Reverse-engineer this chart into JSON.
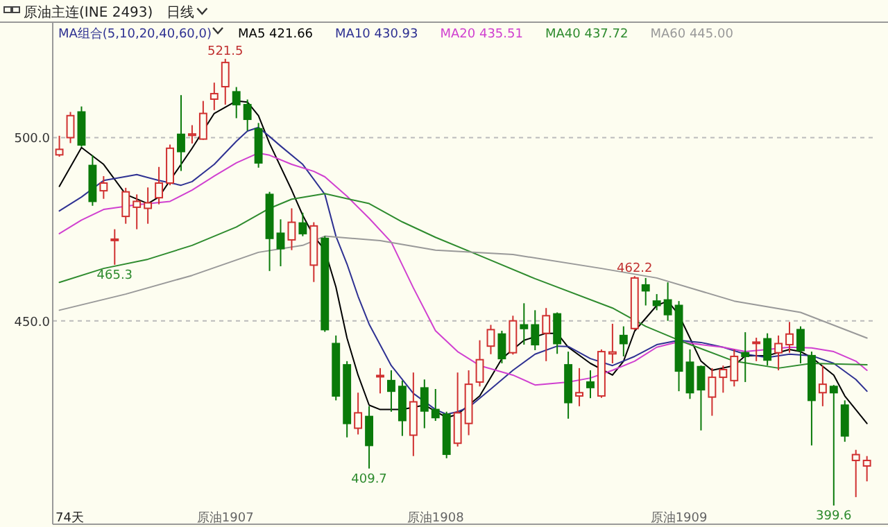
{
  "chart_data": {
    "type": "candlestick",
    "title": "原油主连(INE 2493)",
    "subtitle": "日线",
    "legend_title": "MA组合(5,10,20,40,60,0)",
    "legend": "top left",
    "grid": "y",
    "categories": [
      null,
      null,
      null,
      null,
      null,
      null,
      null,
      null,
      null,
      null,
      null,
      null,
      null,
      null,
      null,
      "原油1907",
      null,
      null,
      null,
      null,
      null,
      null,
      null,
      null,
      null,
      null,
      null,
      null,
      null,
      null,
      null,
      null,
      null,
      null,
      "原油1908",
      null,
      null,
      null,
      null,
      null,
      null,
      null,
      null,
      null,
      null,
      null,
      null,
      null,
      null,
      null,
      null,
      null,
      null,
      null,
      null,
      null,
      "原油1909",
      null,
      null,
      null,
      null,
      null,
      null,
      null,
      null,
      null,
      null,
      null,
      null,
      null,
      null,
      null,
      null,
      null
    ],
    "ylim": [
      394.5,
      531.5
    ],
    "yticks": [
      {
        "value": 500,
        "label": "500.0"
      },
      {
        "value": 450,
        "label": "450.0"
      }
    ],
    "ohlc": [
      [
        495.3,
        500.5,
        494.8,
        496.8
      ],
      [
        500,
        507,
        498.5,
        506
      ],
      [
        507,
        508.5,
        497.5,
        498
      ],
      [
        492.4,
        495.2,
        481.4,
        482.6
      ],
      [
        485.5,
        489.5,
        483.3,
        487.6
      ],
      [
        472,
        475,
        465.3,
        472.3
      ],
      [
        478.5,
        486.3,
        476.5,
        485.2
      ],
      [
        481,
        484.5,
        475,
        482.6
      ],
      [
        480.7,
        486.4,
        476.5,
        482.2
      ],
      [
        483.6,
        492,
        481.8,
        487.6
      ],
      [
        487.6,
        498.1,
        487,
        497.1
      ],
      [
        500.9,
        511.6,
        490.9,
        496.2
      ],
      [
        500.6,
        503.4,
        498.4,
        501
      ],
      [
        499.6,
        510,
        499.4,
        506.6
      ],
      [
        510.5,
        515,
        507.5,
        512
      ],
      [
        513.9,
        521.5,
        509,
        520.5
      ],
      [
        512.5,
        513.8,
        505.3,
        509
      ],
      [
        509,
        510.4,
        501.9,
        505
      ],
      [
        502.4,
        504,
        491.8,
        493.1
      ],
      [
        484.5,
        485.2,
        463.6,
        472.5
      ],
      [
        473.9,
        477.7,
        464.9,
        469.7
      ],
      [
        472.1,
        480.7,
        469.3,
        476.9
      ],
      [
        476.7,
        479.5,
        473.1,
        473.8
      ],
      [
        465.2,
        476.9,
        460.6,
        475.9
      ],
      [
        472.5,
        473.1,
        447,
        447.6
      ],
      [
        443.8,
        446,
        428.3,
        429.5
      ],
      [
        438,
        439,
        418.2,
        422
      ],
      [
        420.7,
        430.4,
        419,
        424.9
      ],
      [
        423.9,
        426.7,
        409.7,
        416
      ],
      [
        434.8,
        437.1,
        430.2,
        435.1
      ],
      [
        433.7,
        436.5,
        425.2,
        430.8
      ],
      [
        432.1,
        433.7,
        418.6,
        422.8
      ],
      [
        418.8,
        435.9,
        413.1,
        427.9
      ],
      [
        431.7,
        434,
        420.7,
        425.4
      ],
      [
        425.8,
        431.4,
        422.7,
        423.6
      ],
      [
        424.5,
        425.2,
        412.5,
        413.6
      ],
      [
        416.6,
        435.9,
        415.7,
        424.9
      ],
      [
        422,
        436.5,
        418.8,
        432.7
      ],
      [
        433.3,
        444.7,
        432.1,
        439.4
      ],
      [
        443.1,
        448.9,
        440.9,
        447.6
      ],
      [
        446.4,
        447.3,
        438.4,
        439.7
      ],
      [
        441.3,
        451.4,
        440.8,
        450
      ],
      [
        448.9,
        454.8,
        443.5,
        447.9
      ],
      [
        448.9,
        452.9,
        442,
        443.5
      ],
      [
        446.6,
        453.5,
        439,
        451.4
      ],
      [
        451.9,
        452.3,
        441,
        443.8
      ],
      [
        438,
        441.6,
        423.3,
        427.7
      ],
      [
        429.5,
        437.1,
        426.7,
        430.4
      ],
      [
        433.3,
        436.5,
        428.9,
        431.8
      ],
      [
        429.5,
        442.2,
        429,
        441.6
      ],
      [
        441,
        449.2,
        438.4,
        441.5
      ],
      [
        446,
        448.5,
        440.3,
        443.8
      ],
      [
        447.9,
        462.2,
        447.5,
        461.7
      ],
      [
        459.8,
        461.7,
        454.2,
        458.2
      ],
      [
        455.4,
        457.3,
        452.9,
        454.2
      ],
      [
        455.7,
        460.5,
        450,
        451.7
      ],
      [
        454.2,
        455.4,
        430.8,
        436.3
      ],
      [
        438.7,
        442.2,
        428.7,
        430.4
      ],
      [
        437.5,
        437.8,
        420.1,
        431.2
      ],
      [
        429.2,
        437.1,
        424.1,
        434.6
      ],
      [
        434.6,
        437.8,
        430.4,
        436.7
      ],
      [
        433.7,
        442.2,
        432.1,
        440.3
      ],
      [
        441.3,
        446.9,
        433.3,
        440.3
      ],
      [
        444,
        445.4,
        439,
        444.2
      ],
      [
        445.1,
        446.6,
        437.8,
        439.3
      ],
      [
        441.3,
        446,
        436.5,
        443.8
      ],
      [
        443.5,
        449.7,
        441.3,
        446.4
      ],
      [
        447.6,
        448.5,
        438.4,
        441.9
      ],
      [
        440.5,
        441.6,
        416,
        428.3
      ],
      [
        430.4,
        437.8,
        426.7,
        432.7
      ],
      [
        432.1,
        432.5,
        399.6,
        430.4
      ],
      [
        427,
        428.3,
        417,
        418.6
      ],
      [
        411.9,
        414.8,
        401.9,
        413.5
      ],
      [
        410.4,
        413.1,
        406.2,
        411.9
      ]
    ],
    "series": [
      {
        "name": "MA5 421.66",
        "type": "line",
        "color": "#000000",
        "values": [
          486.7,
          null,
          497.3,
          null,
          492.7,
          null,
          484.5,
          null,
          482,
          483.8,
          488.3,
          null,
          497.1,
          null,
          506.6,
          null,
          510,
          509.7,
          506,
          498.4,
          null,
          485.7,
          478.8,
          473.1,
          469.3,
          459.2,
          445.3,
          435.2,
          427,
          425.8,
          null,
          425.8,
          null,
          427,
          null,
          423.6,
          424.5,
          null,
          429.5,
          null,
          439.7,
          null,
          444.7,
          null,
          446.6,
          446.6,
          442.8,
          null,
          438.4,
          null,
          435.2,
          439,
          447.2,
          null,
          454.2,
          455.4,
          451.6,
          445.3,
          439,
          436.5,
          null,
          437.8,
          440.5,
          null,
          440.5,
          null,
          442.2,
          441.6,
          440,
          null,
          435.2,
          429.5,
          null,
          422
        ]
      },
      {
        "name": "MA10 430.93",
        "type": "line",
        "color": "#2e3192",
        "values": [
          480,
          null,
          483.8,
          null,
          488.3,
          null,
          null,
          489.9,
          null,
          488.3,
          null,
          487,
          488,
          null,
          492.7,
          null,
          499,
          501.8,
          502.8,
          500.3,
          497.7,
          null,
          492.7,
          null,
          484.5,
          473.1,
          465.5,
          456.7,
          449.1,
          null,
          437.8,
          null,
          430.2,
          null,
          425.8,
          424.5,
          425.2,
          426.4,
          null,
          431.4,
          null,
          436.5,
          null,
          440.9,
          null,
          443.1,
          443,
          null,
          439.7,
          null,
          437.8,
          null,
          440.3,
          null,
          443.5,
          null,
          444.7,
          null,
          444.1,
          null,
          442.8,
          null,
          440.9,
          null,
          440,
          null,
          440.9,
          null,
          440.5,
          null,
          438.4,
          null,
          434,
          430.8
        ]
      },
      {
        "name": "MA20 435.51",
        "type": "line",
        "color": "#d040d0",
        "values": [
          473.8,
          null,
          477.5,
          null,
          480.4,
          null,
          null,
          481.7,
          null,
          null,
          482.6,
          null,
          485.7,
          null,
          489.5,
          null,
          493.1,
          null,
          495.8,
          495.2,
          null,
          492.7,
          null,
          490.8,
          489.3,
          null,
          484,
          null,
          478,
          null,
          471.5,
          null,
          459,
          null,
          447.3,
          null,
          441.6,
          null,
          437.8,
          null,
          null,
          435.2,
          null,
          432.5,
          null,
          null,
          433.3,
          null,
          434.4,
          null,
          436.5,
          null,
          439,
          null,
          442.8,
          null,
          444.3,
          null,
          443.5,
          null,
          442.8,
          null,
          441.6,
          null,
          442.2,
          null,
          442.8,
          null,
          442.6,
          null,
          441.6,
          null,
          439,
          436.5
        ]
      },
      {
        "name": "MA40 437.72",
        "type": "line",
        "color": "#2e8b2e",
        "values": [
          460.5,
          null,
          null,
          null,
          464.3,
          null,
          null,
          null,
          466.8,
          null,
          null,
          null,
          470.6,
          null,
          null,
          null,
          475.6,
          null,
          null,
          480.7,
          null,
          483.2,
          null,
          null,
          484.7,
          null,
          null,
          null,
          482,
          null,
          null,
          477,
          null,
          null,
          472.8,
          null,
          null,
          null,
          467.8,
          null,
          null,
          null,
          null,
          461.5,
          null,
          null,
          null,
          null,
          null,
          null,
          453.5,
          null,
          null,
          448.5,
          null,
          null,
          444.7,
          null,
          null,
          null,
          null,
          439,
          null,
          null,
          null,
          437.1,
          null,
          null,
          438.4,
          null,
          null,
          null,
          null,
          438
        ]
      },
      {
        "name": "MA60 445.00",
        "type": "line",
        "color": "#999999",
        "values": [
          452.9,
          null,
          null,
          null,
          null,
          null,
          457.3,
          null,
          null,
          null,
          null,
          null,
          462.4,
          null,
          null,
          null,
          null,
          null,
          468.7,
          null,
          null,
          null,
          470.6,
          null,
          473.1,
          null,
          null,
          null,
          null,
          471.9,
          null,
          null,
          null,
          null,
          469.3,
          null,
          null,
          null,
          null,
          null,
          null,
          468.1,
          null,
          null,
          null,
          null,
          null,
          null,
          null,
          464.3,
          null,
          null,
          null,
          null,
          461.7,
          null,
          null,
          null,
          null,
          null,
          null,
          455.4,
          null,
          null,
          null,
          null,
          null,
          452.3,
          null,
          null,
          null,
          null,
          null,
          445.3
        ]
      }
    ],
    "annotations": [
      {
        "text": "521.5",
        "y": 521.5
      },
      {
        "text": "465.3",
        "y": 465.3
      },
      {
        "text": "409.7",
        "y": 409.7
      },
      {
        "text": "462.2",
        "y": 462.2
      },
      {
        "text": "399.6",
        "y": 399.6
      },
      "74天"
    ]
  }
}
